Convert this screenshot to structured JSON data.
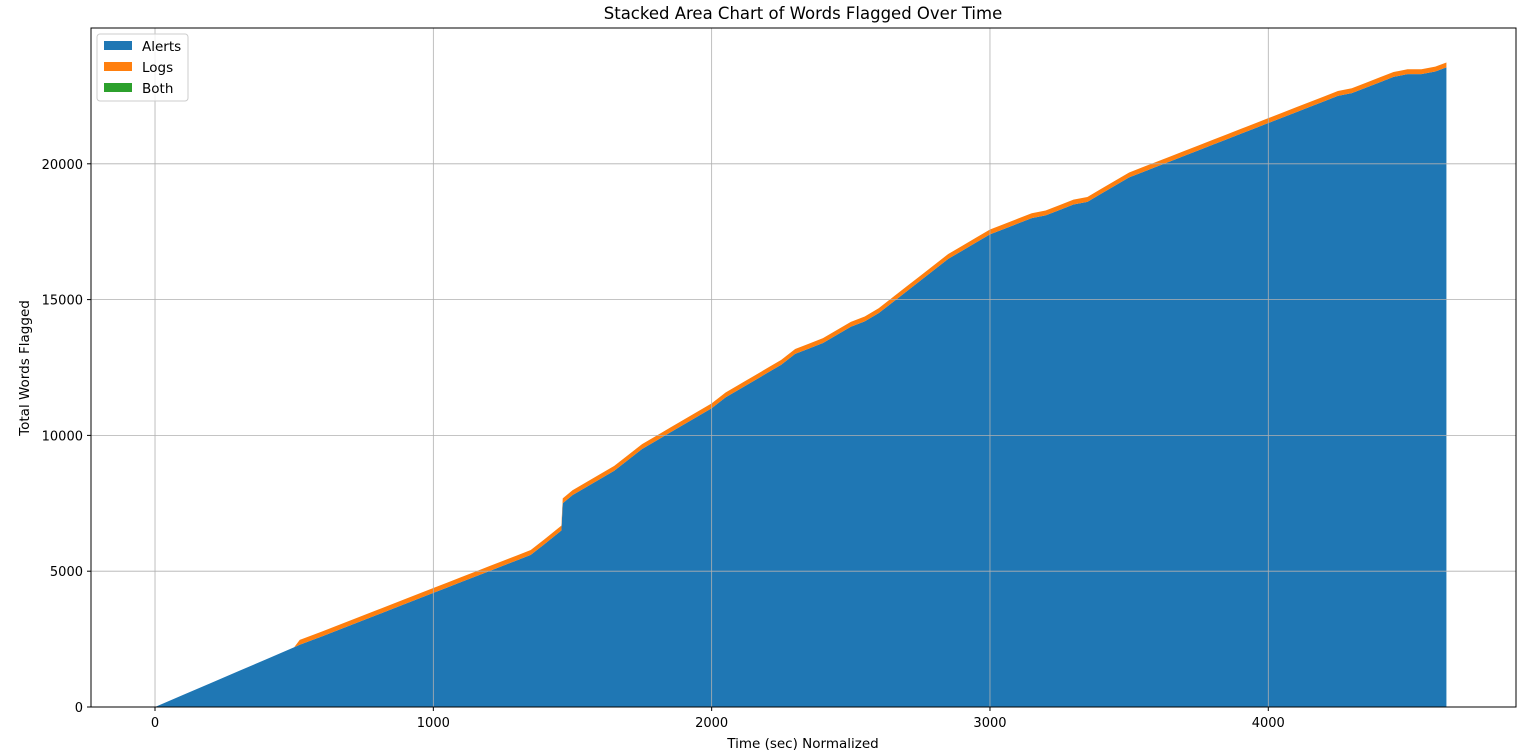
{
  "chart_data": {
    "type": "area",
    "stacked": true,
    "title": "Stacked Area Chart of Words Flagged Over Time",
    "xlabel": "Time (sec) Normalized",
    "ylabel": "Total Words Flagged",
    "xlim": [
      -230,
      4890
    ],
    "ylim": [
      0,
      25000
    ],
    "xticks": [
      0,
      1000,
      2000,
      3000,
      4000
    ],
    "yticks": [
      0,
      5000,
      10000,
      15000,
      20000
    ],
    "grid": true,
    "legend_position": "top-left",
    "x": [
      0,
      100,
      200,
      300,
      400,
      500,
      520,
      600,
      700,
      800,
      900,
      1000,
      1050,
      1100,
      1150,
      1200,
      1250,
      1300,
      1350,
      1400,
      1460,
      1465,
      1500,
      1550,
      1600,
      1650,
      1700,
      1750,
      1800,
      1850,
      1900,
      1950,
      2000,
      2050,
      2100,
      2150,
      2200,
      2250,
      2300,
      2350,
      2400,
      2450,
      2500,
      2550,
      2600,
      2650,
      2700,
      2750,
      2800,
      2850,
      2900,
      2950,
      3000,
      3050,
      3100,
      3150,
      3200,
      3250,
      3300,
      3350,
      3400,
      3450,
      3500,
      3550,
      3600,
      3650,
      3700,
      3750,
      3800,
      3850,
      3900,
      3950,
      4000,
      4050,
      4100,
      4150,
      4200,
      4250,
      4300,
      4350,
      4400,
      4450,
      4500,
      4550,
      4600,
      4640
    ],
    "series": [
      {
        "name": "Alerts",
        "color": "#1f77b4",
        "values": [
          0,
          440,
          880,
          1320,
          1760,
          2200,
          2290,
          2600,
          3000,
          3400,
          3800,
          4200,
          4400,
          4600,
          4800,
          5000,
          5200,
          5400,
          5600,
          6000,
          6500,
          7500,
          7800,
          8100,
          8400,
          8700,
          9100,
          9500,
          9800,
          10100,
          10400,
          10700,
          11000,
          11400,
          11700,
          12000,
          12300,
          12600,
          13000,
          13200,
          13400,
          13700,
          14000,
          14200,
          14500,
          14900,
          15300,
          15700,
          16100,
          16500,
          16800,
          17100,
          17400,
          17600,
          17800,
          18000,
          18100,
          18300,
          18500,
          18600,
          18900,
          19200,
          19500,
          19700,
          19900,
          20100,
          20300,
          20500,
          20700,
          20900,
          21100,
          21300,
          21500,
          21700,
          21900,
          22100,
          22300,
          22500,
          22600,
          22800,
          23000,
          23200,
          23300,
          23300,
          23400,
          23550
        ]
      },
      {
        "name": "Logs",
        "color": "#ff7f0e",
        "values": [
          0,
          0,
          0,
          0,
          0,
          0,
          180,
          180,
          180,
          180,
          180,
          180,
          180,
          180,
          180,
          180,
          180,
          180,
          180,
          180,
          180,
          180,
          180,
          180,
          180,
          180,
          180,
          180,
          180,
          180,
          180,
          180,
          180,
          180,
          180,
          180,
          180,
          180,
          180,
          180,
          180,
          180,
          180,
          180,
          180,
          180,
          180,
          180,
          180,
          180,
          180,
          180,
          180,
          180,
          180,
          180,
          180,
          180,
          180,
          180,
          180,
          180,
          180,
          180,
          180,
          180,
          180,
          180,
          180,
          180,
          180,
          180,
          180,
          180,
          180,
          180,
          180,
          180,
          180,
          180,
          180,
          180,
          180,
          180,
          180,
          180
        ]
      },
      {
        "name": "Both",
        "color": "#2ca02c",
        "values": [
          0,
          0,
          0,
          0,
          0,
          0,
          0,
          0,
          0,
          0,
          0,
          0,
          0,
          0,
          0,
          0,
          0,
          0,
          0,
          0,
          0,
          0,
          0,
          0,
          0,
          0,
          0,
          0,
          0,
          0,
          0,
          0,
          0,
          0,
          0,
          0,
          0,
          0,
          0,
          0,
          0,
          0,
          0,
          0,
          0,
          0,
          0,
          0,
          0,
          0,
          0,
          0,
          0,
          0,
          0,
          0,
          0,
          0,
          0,
          0,
          0,
          0,
          0,
          0,
          0,
          0,
          0,
          0,
          0,
          0,
          0,
          0,
          0,
          0,
          0,
          0,
          0,
          0,
          0,
          0,
          0,
          0,
          0,
          0,
          0,
          0
        ]
      }
    ]
  }
}
